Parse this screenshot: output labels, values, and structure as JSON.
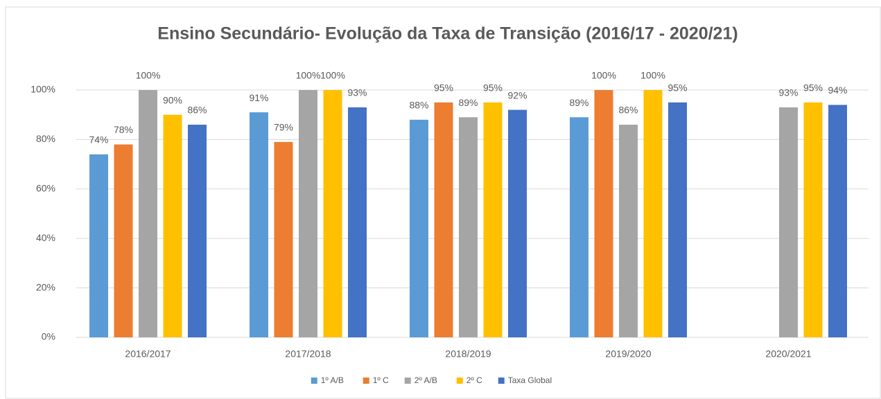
{
  "chart_data": {
    "type": "bar",
    "title": "Ensino Secundário- Evolução da Taxa de Transição (2016/17 - 2020/21)",
    "categories": [
      "2016/2017",
      "2017/2018",
      "2018/2019",
      "2019/2020",
      "2020/2021"
    ],
    "series": [
      {
        "name": "1º A/B",
        "color": "#5b9bd5",
        "values": [
          74,
          91,
          88,
          89,
          null
        ],
        "value_labels": [
          "74%",
          "91%",
          "88%",
          "89%",
          null
        ]
      },
      {
        "name": "1º C",
        "color": "#ed7d31",
        "values": [
          78,
          79,
          95,
          100,
          null
        ],
        "value_labels": [
          "78%",
          "79%",
          "95%",
          "100%",
          null
        ]
      },
      {
        "name": "2º A/B",
        "color": "#a5a5a5",
        "values": [
          100,
          100,
          89,
          86,
          93
        ],
        "value_labels": [
          "100%",
          "100%",
          "89%",
          "86%",
          "93%"
        ]
      },
      {
        "name": "2º C",
        "color": "#ffc000",
        "values": [
          90,
          100,
          95,
          100,
          95
        ],
        "value_labels": [
          "90%",
          "100%",
          "95%",
          "100%",
          "95%"
        ]
      },
      {
        "name": "Taxa Global",
        "color": "#4472c4",
        "values": [
          86,
          93,
          92,
          95,
          94
        ],
        "value_labels": [
          "86%",
          "93%",
          "92%",
          "95%",
          "94%"
        ]
      }
    ],
    "ylim": [
      0,
      100
    ],
    "yticks": [
      {
        "value": 0,
        "label": "0%"
      },
      {
        "value": 20,
        "label": "20%"
      },
      {
        "value": 40,
        "label": "40%"
      },
      {
        "value": 60,
        "label": "60%"
      },
      {
        "value": 80,
        "label": "80%"
      },
      {
        "value": 100,
        "label": "100%"
      }
    ],
    "grid": true,
    "legend": "bottom"
  }
}
